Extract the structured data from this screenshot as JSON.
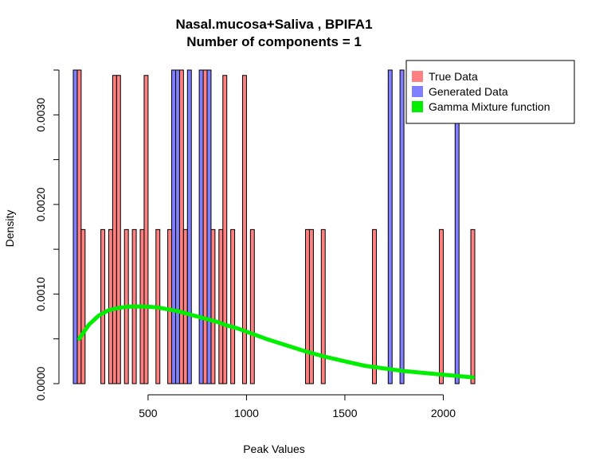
{
  "chart_data": {
    "type": "histogram",
    "title": "Nasal.mucosa+Saliva , BPIFA1",
    "subtitle": "Number of components =  1",
    "xlabel": "Peak Values",
    "ylabel": "Density",
    "xlim": [
      120,
      2160
    ],
    "ylim": [
      0,
      0.0035
    ],
    "x_ticks": [
      500,
      1000,
      1500,
      2000
    ],
    "y_ticks": [
      0.0,
      0.001,
      0.002,
      0.003
    ],
    "y_tick_labels": [
      "0.0000",
      "0.0010",
      "0.0020",
      "0.0030"
    ],
    "bin_width": 20,
    "legend": {
      "position": "top-right",
      "entries": [
        {
          "label": "True Data",
          "color": "#FF8080"
        },
        {
          "label": "Generated Data",
          "color": "#8080FF"
        },
        {
          "label": "Gamma Mixture function",
          "color": "#00EE00"
        }
      ]
    },
    "series": [
      {
        "name": "True Data",
        "color": "#FF8080",
        "bins": [
          {
            "x0": 140,
            "x1": 160,
            "y": 0.0035
          },
          {
            "x0": 160,
            "x1": 180,
            "y": 0.00172
          },
          {
            "x0": 260,
            "x1": 280,
            "y": 0.00172
          },
          {
            "x0": 300,
            "x1": 320,
            "y": 0.00172
          },
          {
            "x0": 320,
            "x1": 340,
            "y": 0.00344
          },
          {
            "x0": 340,
            "x1": 360,
            "y": 0.00344
          },
          {
            "x0": 380,
            "x1": 400,
            "y": 0.00172
          },
          {
            "x0": 420,
            "x1": 440,
            "y": 0.00172
          },
          {
            "x0": 460,
            "x1": 480,
            "y": 0.00172
          },
          {
            "x0": 480,
            "x1": 500,
            "y": 0.00344
          },
          {
            "x0": 540,
            "x1": 560,
            "y": 0.00172
          },
          {
            "x0": 600,
            "x1": 620,
            "y": 0.00172
          },
          {
            "x0": 660,
            "x1": 680,
            "y": 0.0035
          },
          {
            "x0": 680,
            "x1": 700,
            "y": 0.00172
          },
          {
            "x0": 780,
            "x1": 800,
            "y": 0.0035
          },
          {
            "x0": 820,
            "x1": 840,
            "y": 0.00172
          },
          {
            "x0": 860,
            "x1": 880,
            "y": 0.00172
          },
          {
            "x0": 880,
            "x1": 900,
            "y": 0.00344
          },
          {
            "x0": 920,
            "x1": 940,
            "y": 0.00172
          },
          {
            "x0": 980,
            "x1": 1000,
            "y": 0.00344
          },
          {
            "x0": 1020,
            "x1": 1040,
            "y": 0.00172
          },
          {
            "x0": 1300,
            "x1": 1320,
            "y": 0.00172
          },
          {
            "x0": 1320,
            "x1": 1340,
            "y": 0.00172
          },
          {
            "x0": 1380,
            "x1": 1400,
            "y": 0.00172
          },
          {
            "x0": 1640,
            "x1": 1660,
            "y": 0.00172
          },
          {
            "x0": 1980,
            "x1": 2000,
            "y": 0.00172
          },
          {
            "x0": 2140,
            "x1": 2160,
            "y": 0.00172
          }
        ]
      },
      {
        "name": "Generated Data",
        "color": "#8080FF",
        "bins": [
          {
            "x0": 120,
            "x1": 140,
            "y": 0.0035
          },
          {
            "x0": 620,
            "x1": 640,
            "y": 0.0035
          },
          {
            "x0": 640,
            "x1": 660,
            "y": 0.0035
          },
          {
            "x0": 700,
            "x1": 720,
            "y": 0.0035
          },
          {
            "x0": 760,
            "x1": 780,
            "y": 0.0035
          },
          {
            "x0": 800,
            "x1": 820,
            "y": 0.0035
          },
          {
            "x0": 1720,
            "x1": 1740,
            "y": 0.0035
          },
          {
            "x0": 1780,
            "x1": 1800,
            "y": 0.0035
          },
          {
            "x0": 2060,
            "x1": 2080,
            "y": 0.0035
          }
        ]
      },
      {
        "name": "Gamma Mixture function",
        "color": "#00EE00",
        "type": "line",
        "x": [
          150,
          200,
          250,
          300,
          350,
          400,
          450,
          500,
          550,
          600,
          650,
          700,
          750,
          800,
          850,
          900,
          950,
          1000,
          1100,
          1200,
          1300,
          1400,
          1500,
          1600,
          1700,
          1800,
          1900,
          2000,
          2100,
          2150
        ],
        "y": [
          0.0005,
          0.00066,
          0.00076,
          0.00082,
          0.000845,
          0.00086,
          0.000862,
          0.000858,
          0.00085,
          0.00083,
          0.00081,
          0.00078,
          0.00075,
          0.00072,
          0.00069,
          0.00065,
          0.00062,
          0.00058,
          0.0005,
          0.00043,
          0.00036,
          0.0003,
          0.00025,
          0.0002,
          0.00017,
          0.00014,
          0.00012,
          0.0001,
          8e-05,
          7e-05
        ]
      }
    ]
  }
}
